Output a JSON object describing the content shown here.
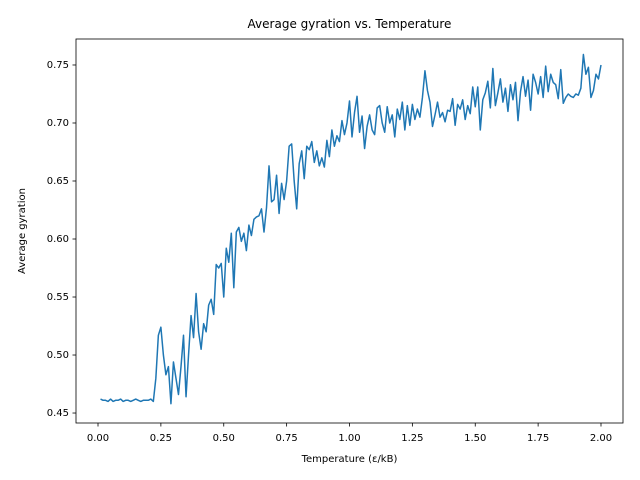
{
  "chart_data": {
    "type": "line",
    "title": "Average gyration vs. Temperature",
    "x_label": "Temperature (ε/kB)",
    "y_label": "Average gyration",
    "color": "#1f77b4",
    "x": [
      0.01,
      0.02,
      0.03,
      0.04,
      0.05,
      0.06,
      0.07,
      0.08,
      0.09,
      0.1,
      0.11,
      0.12,
      0.13,
      0.14,
      0.15,
      0.16,
      0.17,
      0.18,
      0.19,
      0.2,
      0.21,
      0.22,
      0.23,
      0.24,
      0.25,
      0.26,
      0.27,
      0.28,
      0.29,
      0.3,
      0.31,
      0.32,
      0.33,
      0.34,
      0.35,
      0.36,
      0.37,
      0.38,
      0.39,
      0.4,
      0.41,
      0.42,
      0.43,
      0.44,
      0.45,
      0.46,
      0.47,
      0.48,
      0.49,
      0.5,
      0.51,
      0.52,
      0.53,
      0.54,
      0.55,
      0.56,
      0.57,
      0.58,
      0.59,
      0.6,
      0.61,
      0.62,
      0.63,
      0.64,
      0.65,
      0.66,
      0.67,
      0.68,
      0.69,
      0.7,
      0.71,
      0.72,
      0.73,
      0.74,
      0.75,
      0.76,
      0.77,
      0.78,
      0.79,
      0.8,
      0.81,
      0.82,
      0.83,
      0.84,
      0.85,
      0.86,
      0.87,
      0.88,
      0.89,
      0.9,
      0.91,
      0.92,
      0.93,
      0.94,
      0.95,
      0.96,
      0.97,
      0.98,
      0.99,
      1.0,
      1.01,
      1.02,
      1.03,
      1.04,
      1.05,
      1.06,
      1.07,
      1.08,
      1.09,
      1.1,
      1.11,
      1.12,
      1.13,
      1.14,
      1.15,
      1.16,
      1.17,
      1.18,
      1.19,
      1.2,
      1.21,
      1.22,
      1.23,
      1.24,
      1.25,
      1.26,
      1.27,
      1.28,
      1.29,
      1.3,
      1.31,
      1.32,
      1.33,
      1.34,
      1.35,
      1.36,
      1.37,
      1.38,
      1.39,
      1.4,
      1.41,
      1.42,
      1.43,
      1.44,
      1.45,
      1.46,
      1.47,
      1.48,
      1.49,
      1.5,
      1.51,
      1.52,
      1.53,
      1.54,
      1.55,
      1.56,
      1.57,
      1.58,
      1.59,
      1.6,
      1.61,
      1.62,
      1.63,
      1.64,
      1.65,
      1.66,
      1.67,
      1.68,
      1.69,
      1.7,
      1.71,
      1.72,
      1.73,
      1.74,
      1.75,
      1.76,
      1.77,
      1.78,
      1.79,
      1.8,
      1.81,
      1.82,
      1.83,
      1.84,
      1.85,
      1.86,
      1.87,
      1.88,
      1.89,
      1.9,
      1.91,
      1.92,
      1.93,
      1.94,
      1.95,
      1.96,
      1.97,
      1.98,
      1.99,
      2.0
    ],
    "values": [
      0.462,
      0.461,
      0.461,
      0.46,
      0.462,
      0.46,
      0.461,
      0.461,
      0.462,
      0.46,
      0.461,
      0.461,
      0.46,
      0.461,
      0.462,
      0.461,
      0.46,
      0.461,
      0.461,
      0.461,
      0.462,
      0.46,
      0.48,
      0.517,
      0.524,
      0.5,
      0.483,
      0.49,
      0.458,
      0.494,
      0.48,
      0.466,
      0.49,
      0.517,
      0.464,
      0.5,
      0.534,
      0.515,
      0.553,
      0.52,
      0.505,
      0.527,
      0.52,
      0.543,
      0.548,
      0.535,
      0.578,
      0.575,
      0.579,
      0.55,
      0.592,
      0.58,
      0.605,
      0.558,
      0.606,
      0.61,
      0.598,
      0.605,
      0.59,
      0.612,
      0.603,
      0.617,
      0.619,
      0.62,
      0.626,
      0.606,
      0.627,
      0.663,
      0.632,
      0.634,
      0.655,
      0.622,
      0.648,
      0.634,
      0.65,
      0.68,
      0.682,
      0.65,
      0.626,
      0.665,
      0.676,
      0.652,
      0.68,
      0.677,
      0.684,
      0.666,
      0.676,
      0.663,
      0.67,
      0.662,
      0.685,
      0.671,
      0.694,
      0.68,
      0.689,
      0.684,
      0.702,
      0.69,
      0.7,
      0.719,
      0.688,
      0.709,
      0.723,
      0.692,
      0.706,
      0.678,
      0.697,
      0.707,
      0.694,
      0.69,
      0.713,
      0.715,
      0.7,
      0.692,
      0.714,
      0.7,
      0.707,
      0.688,
      0.712,
      0.703,
      0.718,
      0.694,
      0.715,
      0.698,
      0.716,
      0.703,
      0.712,
      0.705,
      0.722,
      0.745,
      0.728,
      0.718,
      0.697,
      0.707,
      0.718,
      0.705,
      0.709,
      0.701,
      0.711,
      0.71,
      0.721,
      0.698,
      0.716,
      0.712,
      0.72,
      0.703,
      0.715,
      0.708,
      0.731,
      0.714,
      0.731,
      0.694,
      0.72,
      0.726,
      0.736,
      0.713,
      0.747,
      0.715,
      0.726,
      0.738,
      0.718,
      0.73,
      0.71,
      0.733,
      0.72,
      0.735,
      0.702,
      0.727,
      0.74,
      0.723,
      0.737,
      0.711,
      0.742,
      0.735,
      0.725,
      0.74,
      0.722,
      0.749,
      0.727,
      0.742,
      0.735,
      0.733,
      0.721,
      0.746,
      0.717,
      0.722,
      0.725,
      0.723,
      0.722,
      0.725,
      0.724,
      0.73,
      0.759,
      0.742,
      0.748,
      0.722,
      0.728,
      0.742,
      0.738,
      0.75
    ],
    "xlim": [
      -0.0875,
      2.0875
    ],
    "xticks": [
      {
        "value": 0,
        "label": "0.00"
      },
      0.25,
      {
        "value": 0.5,
        "label": "0.50"
      },
      0.75,
      {
        "value": 1,
        "label": "1.00"
      },
      1.25,
      {
        "value": 1.5,
        "label": "1.50"
      },
      1.75,
      {
        "value": 2,
        "label": "2.00"
      }
    ],
    "ylim": [
      0.4414,
      0.7724
    ],
    "yticks": [
      0.45,
      {
        "value": 0.5,
        "label": "0.50"
      },
      0.55,
      {
        "value": 0.6,
        "label": "0.60"
      },
      0.65,
      {
        "value": 0.7,
        "label": "0.70"
      },
      0.75
    ],
    "grid": false
  }
}
